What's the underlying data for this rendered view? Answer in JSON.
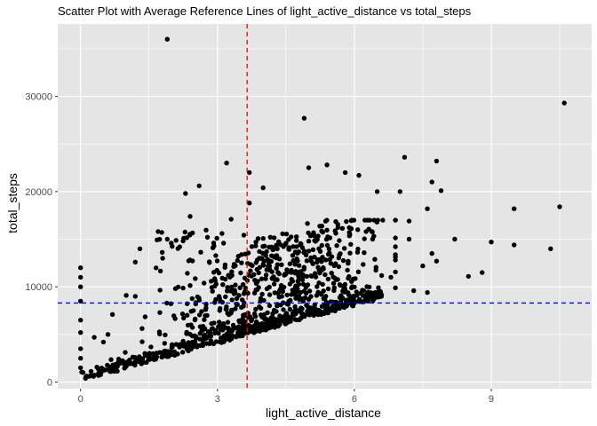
{
  "chart_data": {
    "type": "scatter",
    "title": "Scatter Plot with Average Reference Lines of light_active_distance vs total_steps",
    "xlabel": "light_active_distance",
    "ylabel": "total_steps",
    "xlim": [
      -0.5,
      11.2
    ],
    "ylim": [
      -700,
      37600
    ],
    "x_ticks": [
      0,
      3,
      6,
      9
    ],
    "y_ticks": [
      0,
      10000,
      20000,
      30000
    ],
    "grid": true,
    "background": "#E5E5E5",
    "grid_color": "#FFFFFF",
    "point_color": "#000000",
    "reference_lines": {
      "vertical": {
        "x": 3.65,
        "color": "#FF0000",
        "style": "dashed"
      },
      "horizontal": {
        "y": 8300,
        "color": "#0000FF",
        "style": "dashed"
      }
    },
    "outliers": [
      [
        1.9,
        36000
      ],
      [
        4.9,
        27700
      ],
      [
        10.6,
        29300
      ],
      [
        3.2,
        23000
      ],
      [
        7.1,
        23600
      ],
      [
        7.8,
        23200
      ],
      [
        5.4,
        22800
      ],
      [
        6.1,
        21700
      ],
      [
        7.7,
        21000
      ],
      [
        7.9,
        20100
      ],
      [
        3.7,
        22000
      ],
      [
        3.7,
        18800
      ],
      [
        5.0,
        22500
      ],
      [
        5.8,
        22000
      ],
      [
        4.0,
        20400
      ],
      [
        2.6,
        20600
      ],
      [
        2.3,
        19800
      ],
      [
        6.5,
        20000
      ],
      [
        7.0,
        20000
      ],
      [
        9.5,
        18200
      ],
      [
        10.5,
        18400
      ],
      [
        7.6,
        18200
      ],
      [
        7.2,
        16900
      ],
      [
        8.2,
        15000
      ],
      [
        9.0,
        14700
      ],
      [
        9.5,
        14400
      ],
      [
        10.3,
        14000
      ],
      [
        8.5,
        11100
      ],
      [
        8.8,
        11500
      ],
      [
        7.5,
        12200
      ],
      [
        7.8,
        12700
      ],
      [
        7.7,
        13500
      ],
      [
        7.2,
        15000
      ],
      [
        6.4,
        15000
      ],
      [
        5.9,
        15500
      ],
      [
        3.3,
        17100
      ],
      [
        3.1,
        15600
      ],
      [
        2.4,
        17400
      ],
      [
        1.3,
        14000
      ],
      [
        1.7,
        15800
      ],
      [
        1.9,
        15000
      ],
      [
        1.8,
        13000
      ],
      [
        1.2,
        12600
      ],
      [
        0.0,
        12000
      ],
      [
        0.0,
        11000
      ],
      [
        0.0,
        10000
      ],
      [
        0.0,
        8500
      ],
      [
        0.0,
        6500
      ],
      [
        0.0,
        5200
      ],
      [
        0.0,
        3500
      ],
      [
        0.0,
        2500
      ],
      [
        0.0,
        1500
      ],
      [
        0.7,
        7100
      ],
      [
        1.2,
        9000
      ],
      [
        0.6,
        5000
      ],
      [
        0.3,
        4700
      ],
      [
        0.5,
        4200
      ],
      [
        1.0,
        9100
      ],
      [
        6.8,
        11000
      ],
      [
        7.3,
        9600
      ],
      [
        7.6,
        9400
      ],
      [
        6.3,
        8500
      ],
      [
        6.0,
        8300
      ]
    ]
  }
}
